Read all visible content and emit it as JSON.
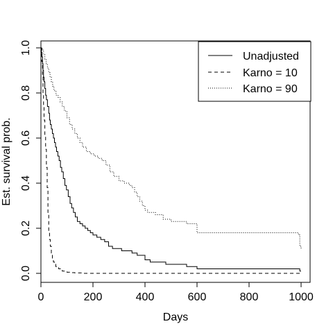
{
  "chart_data": {
    "type": "line",
    "xlabel": "Days",
    "ylabel": "Est. survival prob.",
    "xlim": [
      0,
      1000
    ],
    "ylim": [
      0,
      1
    ],
    "x_ticks": [
      0,
      200,
      400,
      600,
      800,
      1000
    ],
    "y_ticks": [
      0.0,
      0.2,
      0.4,
      0.6,
      0.8,
      1.0
    ],
    "x_tick_labels": [
      "0",
      "200",
      "400",
      "600",
      "800",
      "1000"
    ],
    "y_tick_labels": [
      "0.0",
      "0.2",
      "0.4",
      "0.6",
      "0.8",
      "1.0"
    ],
    "grid": false,
    "legend_position": "top-right",
    "series": [
      {
        "name": "Unadjusted",
        "linestyle": "solid",
        "x": [
          0,
          2,
          4,
          6,
          8,
          10,
          12,
          15,
          18,
          21,
          25,
          30,
          33,
          36,
          40,
          44,
          48,
          52,
          56,
          60,
          65,
          70,
          75,
          80,
          86,
          92,
          98,
          105,
          112,
          118,
          125,
          132,
          140,
          150,
          160,
          170,
          180,
          190,
          200,
          215,
          230,
          245,
          260,
          275,
          290,
          310,
          330,
          350,
          370,
          390,
          400,
          420,
          450,
          480,
          520,
          560,
          600,
          700,
          800,
          900,
          990,
          995,
          1000
        ],
        "y": [
          1.0,
          0.98,
          0.96,
          0.93,
          0.9,
          0.87,
          0.85,
          0.82,
          0.79,
          0.77,
          0.74,
          0.71,
          0.68,
          0.66,
          0.64,
          0.62,
          0.6,
          0.58,
          0.56,
          0.54,
          0.52,
          0.5,
          0.47,
          0.45,
          0.42,
          0.39,
          0.37,
          0.34,
          0.31,
          0.29,
          0.27,
          0.25,
          0.23,
          0.22,
          0.21,
          0.2,
          0.19,
          0.18,
          0.17,
          0.16,
          0.15,
          0.14,
          0.12,
          0.11,
          0.11,
          0.1,
          0.1,
          0.09,
          0.08,
          0.08,
          0.06,
          0.05,
          0.05,
          0.04,
          0.04,
          0.03,
          0.02,
          0.02,
          0.02,
          0.02,
          0.02,
          0.01,
          0.01
        ]
      },
      {
        "name": "Karno = 10",
        "linestyle": "dashed",
        "x": [
          0,
          3,
          6,
          8,
          10,
          12,
          15,
          18,
          21,
          24,
          27,
          30,
          33,
          36,
          40,
          44,
          48,
          52,
          57,
          62,
          68,
          75,
          82,
          90,
          100,
          110,
          130,
          160,
          200,
          300,
          400,
          500,
          600,
          700,
          800,
          900,
          1000
        ],
        "y": [
          1.0,
          0.94,
          0.87,
          0.8,
          0.74,
          0.68,
          0.61,
          0.55,
          0.47,
          0.38,
          0.27,
          0.19,
          0.15,
          0.12,
          0.09,
          0.06,
          0.05,
          0.04,
          0.03,
          0.025,
          0.02,
          0.015,
          0.01,
          0.008,
          0.005,
          0.003,
          0.002,
          0.0,
          0.0,
          0.0,
          0.0,
          0.0,
          0.0,
          0.0,
          0.0,
          0.0,
          0.0
        ]
      },
      {
        "name": "Karno = 90",
        "linestyle": "dotted",
        "x": [
          0,
          5,
          10,
          15,
          20,
          25,
          30,
          35,
          40,
          45,
          50,
          58,
          66,
          74,
          82,
          90,
          100,
          110,
          120,
          130,
          140,
          150,
          160,
          175,
          190,
          205,
          220,
          235,
          250,
          265,
          280,
          300,
          320,
          340,
          350,
          360,
          370,
          380,
          390,
          400,
          410,
          440,
          470,
          500,
          530,
          560,
          580,
          600,
          650,
          700,
          800,
          900,
          990,
          995,
          1000
        ],
        "y": [
          1.0,
          0.99,
          0.97,
          0.95,
          0.93,
          0.91,
          0.89,
          0.87,
          0.85,
          0.83,
          0.81,
          0.79,
          0.78,
          0.76,
          0.74,
          0.72,
          0.69,
          0.66,
          0.64,
          0.62,
          0.6,
          0.58,
          0.56,
          0.54,
          0.53,
          0.52,
          0.51,
          0.5,
          0.48,
          0.45,
          0.43,
          0.41,
          0.4,
          0.39,
          0.38,
          0.36,
          0.34,
          0.32,
          0.3,
          0.28,
          0.27,
          0.26,
          0.24,
          0.23,
          0.23,
          0.22,
          0.22,
          0.18,
          0.18,
          0.18,
          0.18,
          0.18,
          0.17,
          0.12,
          0.11
        ]
      }
    ]
  }
}
